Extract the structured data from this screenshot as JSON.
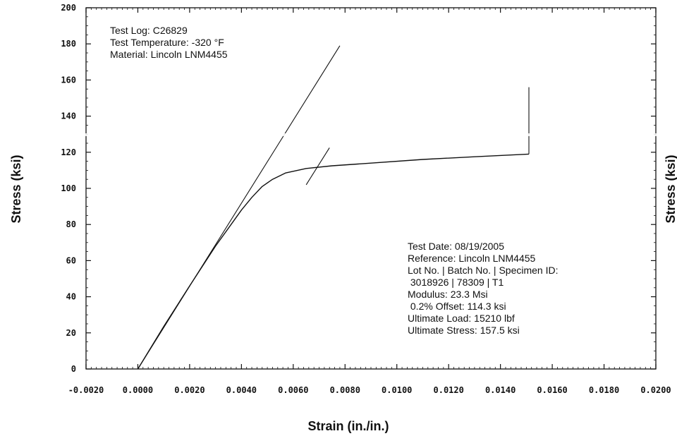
{
  "chart_data": {
    "type": "line",
    "title": "",
    "xlabel": "Strain (in./in.)",
    "ylabel": "Stress (ksi)",
    "ylabel_right": "Stress (ksi)",
    "xlim": [
      -0.002,
      0.02
    ],
    "ylim": [
      0,
      200
    ],
    "x_ticks": [
      -0.002,
      0.0,
      0.002,
      0.004,
      0.006,
      0.008,
      0.01,
      0.012,
      0.014,
      0.016,
      0.018,
      0.02
    ],
    "x_tick_labels": [
      "-0.0020",
      "0.0000",
      "0.0020",
      "0.0040",
      "0.0060",
      "0.0080",
      "0.0100",
      "0.0120",
      "0.0140",
      "0.0160",
      "0.0180",
      "0.0200"
    ],
    "y_ticks": [
      0,
      20,
      40,
      60,
      80,
      100,
      120,
      140,
      160,
      180,
      200
    ],
    "y_tick_labels": [
      "0",
      "20",
      "40",
      "60",
      "80",
      "100",
      "120",
      "140",
      "160",
      "180",
      "200"
    ],
    "grid": false,
    "series": [
      {
        "values": [
          [
            0.0,
            0
          ],
          [
            0.001,
            23.5
          ],
          [
            0.002,
            46
          ],
          [
            0.003,
            68
          ],
          [
            0.0036,
            80
          ],
          [
            0.004,
            88
          ],
          [
            0.0044,
            95
          ],
          [
            0.0048,
            101
          ],
          [
            0.0052,
            105
          ],
          [
            0.0057,
            108.5
          ],
          [
            0.0065,
            111
          ],
          [
            0.0075,
            112.5
          ],
          [
            0.009,
            114
          ],
          [
            0.011,
            116
          ],
          [
            0.013,
            117.5
          ],
          [
            0.0151,
            119
          ]
        ]
      },
      {
        "values": [
          [
            0.0,
            0
          ],
          [
            0.0078,
            179
          ]
        ]
      },
      {
        "values": [
          [
            0.0065,
            102
          ],
          [
            0.0074,
            122.5
          ]
        ]
      },
      {
        "values": [
          [
            0.0151,
            119
          ],
          [
            0.0151,
            156
          ]
        ]
      }
    ],
    "annotations": {
      "top_left": [
        "Test Log: C26829",
        "Test Temperature: -320 °F",
        "Material: Lincoln LNM4455"
      ],
      "bottom_right": [
        "Test Date: 08/19/2005",
        "Reference: Lincoln LNM4455",
        "Lot No. | Batch No. | Specimen ID:",
        " 3018926 | 78309 | T1",
        "Modulus: 23.3 Msi",
        " 0.2% Offset: 114.3 ksi",
        "Ultimate Load: 15210 lbf",
        "Ultimate Stress: 157.5 ksi"
      ]
    },
    "colors": {
      "line": "#111111",
      "axis": "#111111",
      "background": "#ffffff"
    }
  }
}
